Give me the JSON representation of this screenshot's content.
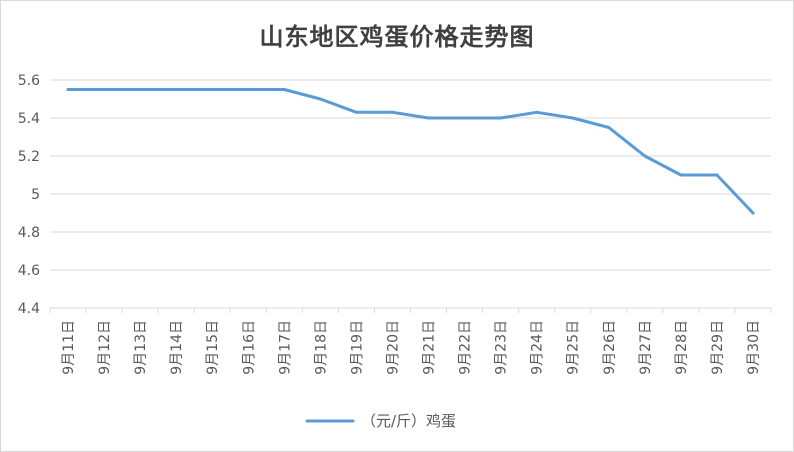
{
  "chart_data": {
    "type": "line",
    "title": "山东地区鸡蛋价格走势图",
    "xlabel": "",
    "ylabel": "",
    "categories": [
      "9月11日",
      "9月12日",
      "9月13日",
      "9月14日",
      "9月15日",
      "9月16日",
      "9月17日",
      "9月18日",
      "9月19日",
      "9月20日",
      "9月21日",
      "9月22日",
      "9月23日",
      "9月24日",
      "9月25日",
      "9月26日",
      "9月27日",
      "9月28日",
      "9月29日",
      "9月30日"
    ],
    "series": [
      {
        "name": "（元/斤）鸡蛋",
        "color": "#5b9bd5",
        "values": [
          5.55,
          5.55,
          5.55,
          5.55,
          5.55,
          5.55,
          5.55,
          5.5,
          5.43,
          5.43,
          5.4,
          5.4,
          5.4,
          5.43,
          5.4,
          5.35,
          5.2,
          5.1,
          5.1,
          4.9
        ]
      }
    ],
    "ylim": [
      4.4,
      5.6
    ],
    "yticks": [
      4.4,
      4.6,
      4.8,
      5,
      5.2,
      5.4,
      5.6
    ],
    "ytick_labels": [
      "4.4",
      "4.6",
      "4.8",
      "5",
      "5.2",
      "5.4",
      "5.6"
    ],
    "grid": true,
    "legend_position": "bottom"
  }
}
